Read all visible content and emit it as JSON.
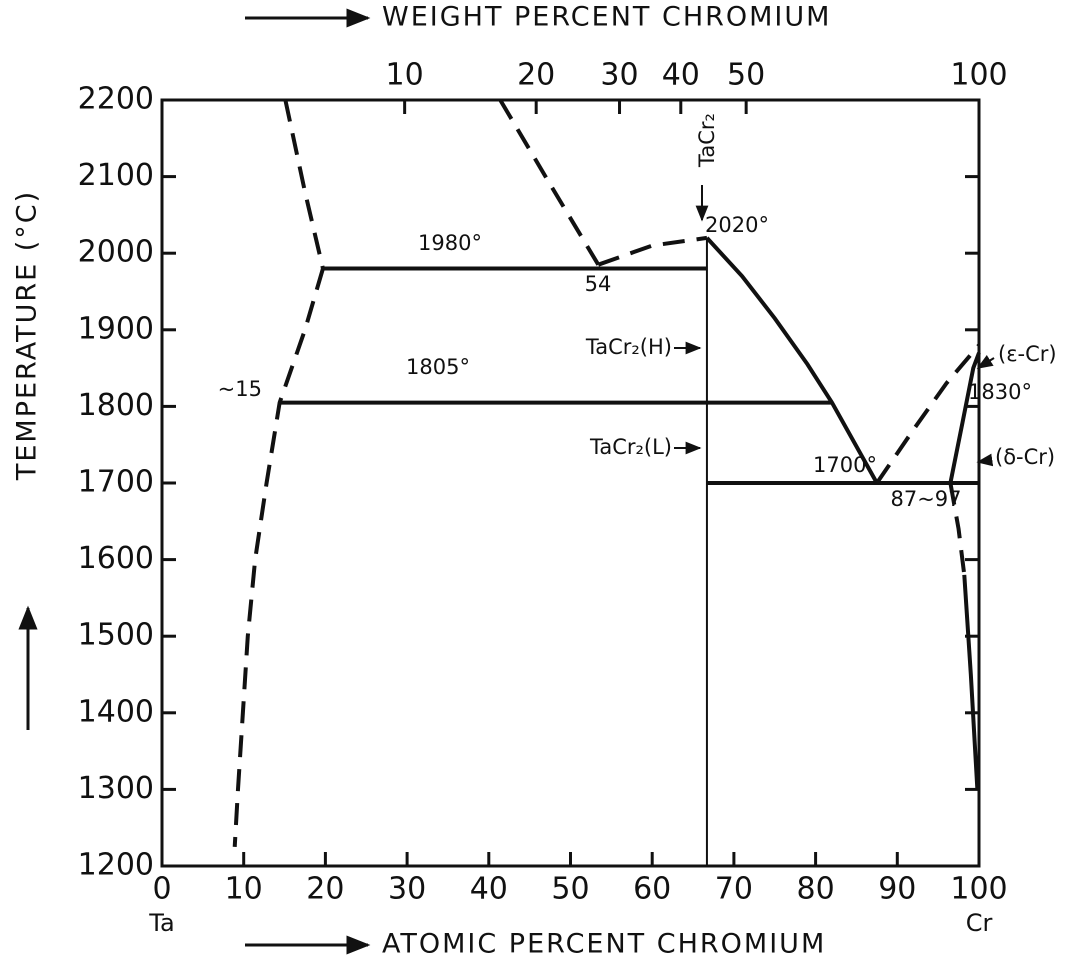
{
  "chart_data": {
    "type": "phase_diagram",
    "top_axis_label": "WEIGHT PERCENT CHROMIUM",
    "xlabel": "ATOMIC PERCENT CHROMIUM",
    "ylabel": "TEMPERATURE (°C)",
    "xlim": [
      0,
      100
    ],
    "ylim": [
      1200,
      2200
    ],
    "xticks": [
      0,
      10,
      20,
      30,
      40,
      50,
      60,
      70,
      80,
      90,
      100
    ],
    "yticks": [
      1200,
      1300,
      1400,
      1500,
      1600,
      1700,
      1800,
      1900,
      2000,
      2100,
      2200
    ],
    "x2ticks": [
      {
        "value": 29.7,
        "label": "10"
      },
      {
        "value": 45.8,
        "label": "20"
      },
      {
        "value": 56,
        "label": "30"
      },
      {
        "value": 63.5,
        "label": "40"
      },
      {
        "value": 71.5,
        "label": "50"
      },
      {
        "value": 100,
        "label": "100"
      }
    ],
    "x_end_labels": [
      "Ta",
      "Cr"
    ],
    "color": "#111111",
    "series": [
      {
        "style": "dashed",
        "x": [
          15.1,
          17.5,
          19.7
        ],
        "y": [
          2200,
          2080,
          1980
        ]
      },
      {
        "style": "dashed",
        "x": [
          19.7,
          17.5,
          14.4,
          12.8,
          11.4,
          10.5,
          9.9,
          9.3,
          8.9
        ],
        "y": [
          1980,
          1900,
          1805,
          1700,
          1600,
          1500,
          1400,
          1300,
          1225
        ]
      },
      {
        "style": "dashed",
        "x": [
          41.4,
          47.5,
          53.4
        ],
        "y": [
          2200,
          2090,
          1985
        ]
      },
      {
        "style": "dashed",
        "x": [
          53.4,
          60,
          66.7
        ],
        "y": [
          1985,
          2010,
          2020
        ]
      },
      {
        "style": "solid",
        "x": [
          19.7,
          66.7
        ],
        "y": [
          1980,
          1980
        ]
      },
      {
        "style": "solid",
        "x": [
          14.4,
          82
        ],
        "y": [
          1805,
          1805
        ]
      },
      {
        "style": "solid",
        "x": [
          66.7,
          100
        ],
        "y": [
          1700,
          1700
        ]
      },
      {
        "style": "thin",
        "x": [
          66.7,
          66.7
        ],
        "y": [
          1200,
          2020
        ]
      },
      {
        "style": "solid",
        "x": [
          66.7,
          71,
          75,
          79,
          82,
          87.5
        ],
        "y": [
          2020,
          1970,
          1915,
          1855,
          1805,
          1700
        ]
      },
      {
        "style": "dashed",
        "x": [
          87.5,
          92,
          96,
          100
        ],
        "y": [
          1700,
          1770,
          1830,
          1880
        ]
      },
      {
        "style": "solid",
        "x": [
          96.5,
          98,
          99.3,
          100
        ],
        "y": [
          1700,
          1780,
          1850,
          1870
        ]
      },
      {
        "style": "dashed",
        "x": [
          96.5,
          97.5,
          98.2
        ],
        "y": [
          1700,
          1640,
          1580
        ]
      },
      {
        "style": "solid",
        "x": [
          98.2,
          99,
          99.8
        ],
        "y": [
          1580,
          1450,
          1300
        ]
      }
    ],
    "annotations": [
      "1980°",
      "54",
      "2020°",
      "1805°",
      "~15",
      "1700°",
      "87~97",
      "1830°",
      "TaCr₂",
      "TaCr₂(H)",
      "TaCr₂(L)",
      "(ε-Cr)",
      "(δ-Cr)"
    ]
  }
}
